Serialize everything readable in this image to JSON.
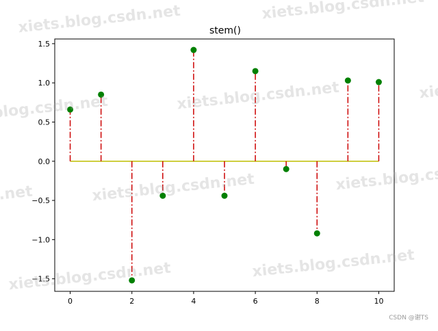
{
  "chart_data": {
    "type": "stem",
    "title": "stem()",
    "xlabel": "",
    "ylabel": "",
    "x": [
      0,
      1,
      2,
      3,
      4,
      5,
      6,
      7,
      8,
      9,
      10
    ],
    "y": [
      0.66,
      0.85,
      -1.52,
      -0.44,
      1.42,
      -0.44,
      1.15,
      -0.1,
      -0.92,
      1.03,
      1.01
    ],
    "xlim": [
      -0.5,
      10.5
    ],
    "ylim": [
      -1.66,
      1.56
    ],
    "xticks": [
      0,
      2,
      4,
      6,
      8,
      10
    ],
    "yticks": [
      -1.5,
      -1.0,
      -0.5,
      0.0,
      0.5,
      1.0,
      1.5
    ],
    "xtick_labels": [
      "0",
      "2",
      "4",
      "6",
      "8",
      "10"
    ],
    "ytick_labels": [
      "−1.5",
      "−1.0",
      "−0.5",
      "0.0",
      "0.5",
      "1.0",
      "1.5"
    ],
    "grid": false,
    "colors": {
      "marker": "#008000",
      "stem_line": "#cc0000",
      "baseline": "#bfbf00"
    },
    "stem_linestyle": "dash-dot"
  },
  "watermark": {
    "text": "xiets.blog.csdn.net"
  },
  "credit": "CSDN @谢TS"
}
